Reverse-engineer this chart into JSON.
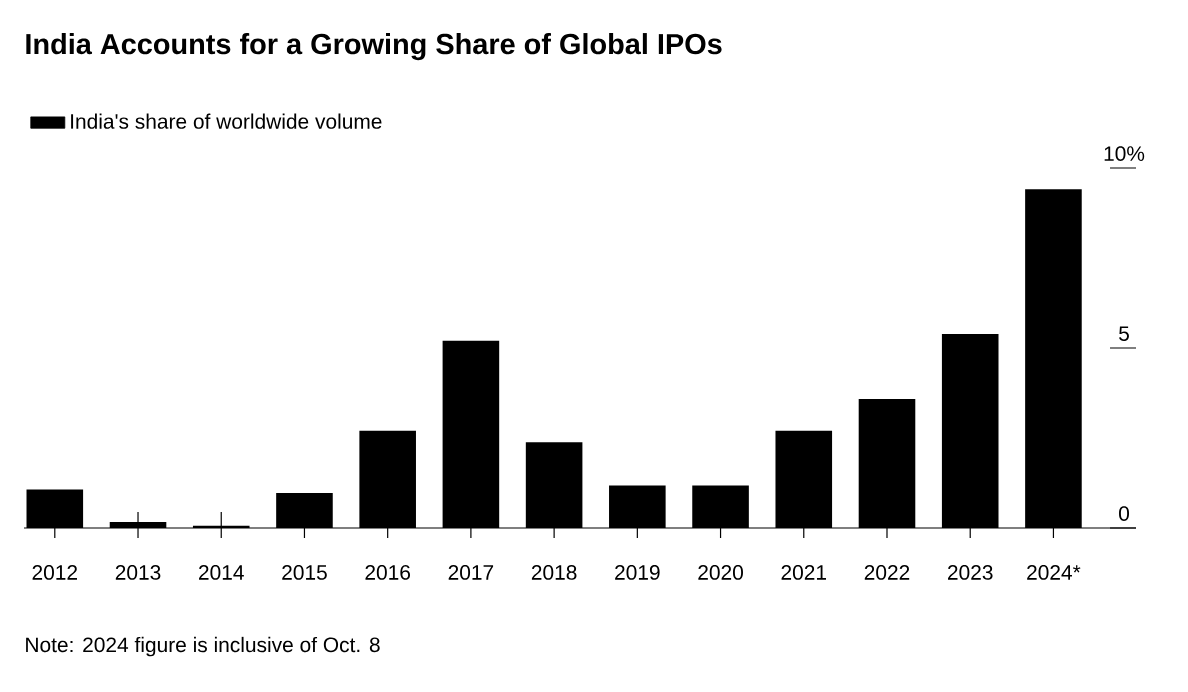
{
  "chart_data": {
    "type": "bar",
    "title": "India Accounts for a Growing Share of Global IPOs",
    "categories": [
      "2012",
      "2013",
      "2014",
      "2015",
      "2016",
      "2017",
      "2018",
      "2019",
      "2020",
      "2021",
      "2022",
      "2023",
      "2024*"
    ],
    "series": [
      {
        "name": "India's share of worldwide volume",
        "color": "#000000",
        "values": [
          1.07,
          0.17,
          0.06,
          0.97,
          2.7,
          5.2,
          2.38,
          1.18,
          1.18,
          2.7,
          3.58,
          5.39,
          9.41
        ]
      }
    ],
    "ylim": [
      0,
      10
    ],
    "yticks": [
      {
        "value": 10,
        "label": "10%"
      },
      5,
      0
    ],
    "legend": "top left",
    "annotations": [
      "Note: 2024 figure is inclusive of Oct. 8"
    ]
  }
}
